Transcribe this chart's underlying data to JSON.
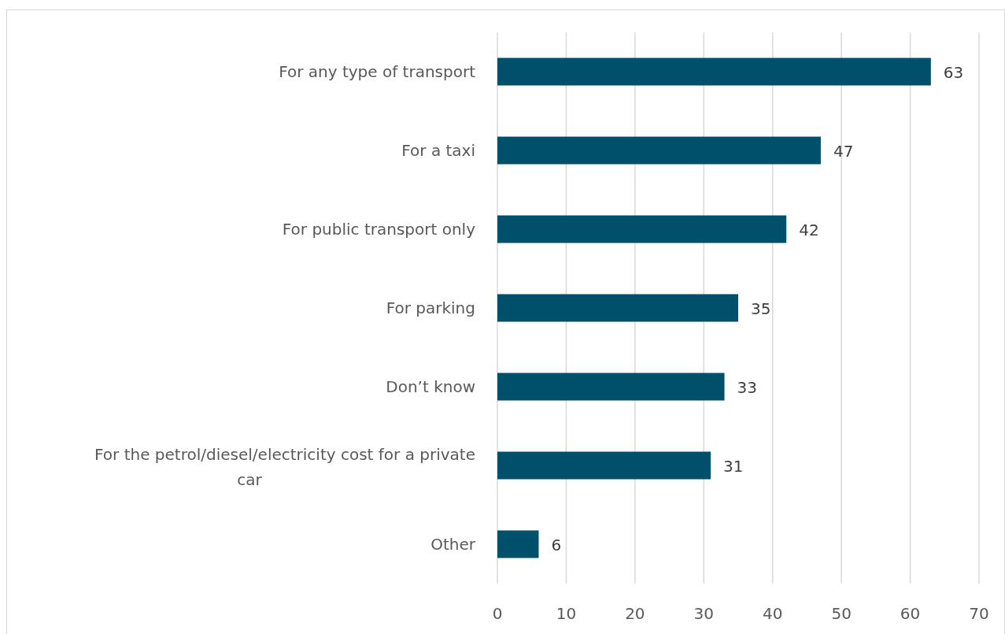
{
  "chart_data": {
    "type": "bar",
    "orientation": "horizontal",
    "categories": [
      "For any type of transport",
      "For a taxi",
      "For public transport only",
      "For parking",
      "Don’t know",
      "For the petrol/diesel/electricity cost for a private car",
      "Other"
    ],
    "values": [
      63,
      47,
      42,
      35,
      33,
      31,
      6
    ],
    "color": "#00506b",
    "xlim": [
      0,
      70
    ],
    "xticks": [
      0,
      10,
      20,
      30,
      40,
      50,
      60,
      70
    ],
    "grid": "x",
    "data_labels": true
  }
}
